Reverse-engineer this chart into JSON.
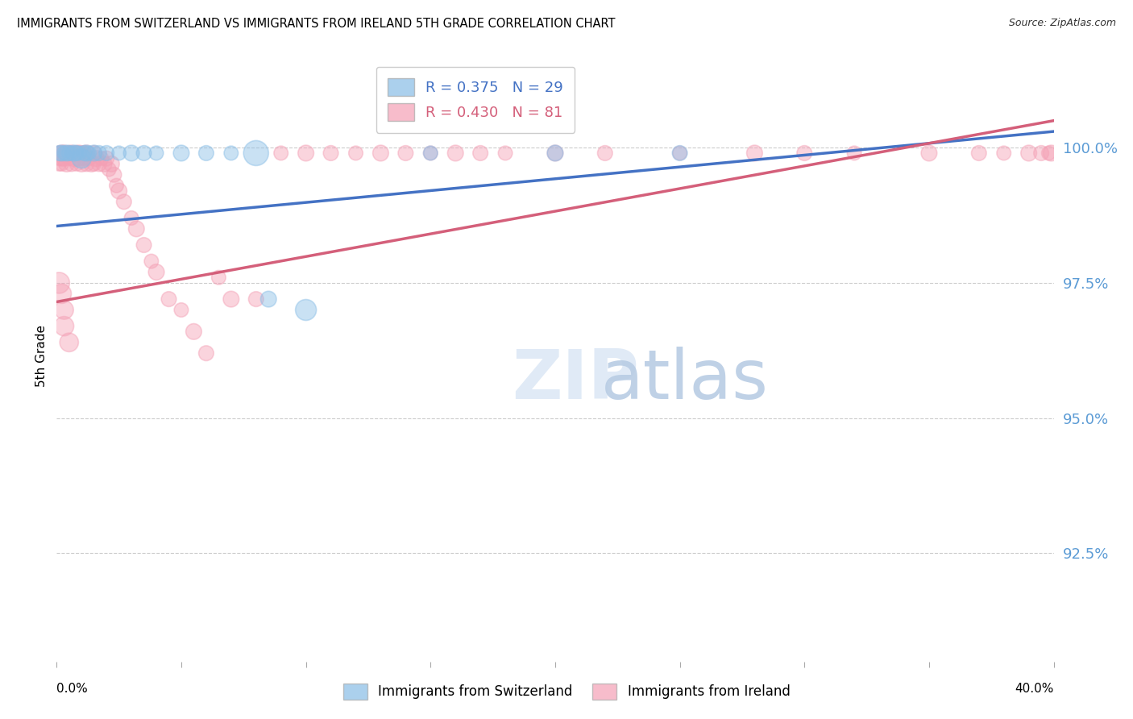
{
  "title": "IMMIGRANTS FROM SWITZERLAND VS IMMIGRANTS FROM IRELAND 5TH GRADE CORRELATION CHART",
  "source": "Source: ZipAtlas.com",
  "ylabel": "5th Grade",
  "y_tick_labels": [
    "100.0%",
    "97.5%",
    "95.0%",
    "92.5%"
  ],
  "y_tick_values": [
    1.0,
    0.975,
    0.95,
    0.925
  ],
  "x_range": [
    0.0,
    0.4
  ],
  "y_range": [
    0.905,
    1.018
  ],
  "legend1_label": "Immigrants from Switzerland",
  "legend2_label": "Immigrants from Ireland",
  "R_switzerland": 0.375,
  "N_switzerland": 29,
  "R_ireland": 0.43,
  "N_ireland": 81,
  "color_switzerland": "#88bde6",
  "color_ireland": "#f4a0b5",
  "line_color_switzerland": "#4472c4",
  "line_color_ireland": "#d45f7a",
  "sw_line_x0": 0.0,
  "sw_line_y0": 0.9855,
  "sw_line_x1": 0.4,
  "sw_line_y1": 1.003,
  "ir_line_x0": 0.0,
  "ir_line_y0": 0.9715,
  "ir_line_x1": 0.4,
  "ir_line_y1": 1.005,
  "sw_x": [
    0.001,
    0.002,
    0.003,
    0.004,
    0.005,
    0.006,
    0.007,
    0.008,
    0.009,
    0.01,
    0.011,
    0.012,
    0.013,
    0.015,
    0.017,
    0.02,
    0.025,
    0.03,
    0.035,
    0.04,
    0.05,
    0.06,
    0.07,
    0.08,
    0.085,
    0.1,
    0.15,
    0.2,
    0.25
  ],
  "sw_y": [
    0.999,
    0.999,
    0.999,
    0.999,
    0.999,
    0.999,
    0.999,
    0.999,
    0.999,
    0.998,
    0.999,
    0.999,
    0.999,
    0.999,
    0.999,
    0.999,
    0.999,
    0.999,
    0.999,
    0.999,
    0.999,
    0.999,
    0.999,
    0.999,
    0.972,
    0.97,
    0.999,
    0.999,
    0.999
  ],
  "sw_s": [
    180,
    200,
    160,
    200,
    180,
    160,
    200,
    180,
    160,
    300,
    180,
    200,
    160,
    200,
    180,
    180,
    160,
    200,
    180,
    160,
    200,
    180,
    160,
    500,
    200,
    350,
    160,
    200,
    180
  ],
  "ir_x": [
    0.001,
    0.001,
    0.001,
    0.002,
    0.002,
    0.002,
    0.003,
    0.003,
    0.004,
    0.004,
    0.005,
    0.005,
    0.006,
    0.006,
    0.007,
    0.007,
    0.008,
    0.008,
    0.009,
    0.009,
    0.01,
    0.01,
    0.011,
    0.011,
    0.012,
    0.012,
    0.013,
    0.014,
    0.015,
    0.015,
    0.016,
    0.017,
    0.018,
    0.019,
    0.02,
    0.021,
    0.022,
    0.023,
    0.024,
    0.025,
    0.027,
    0.03,
    0.032,
    0.035,
    0.038,
    0.04,
    0.045,
    0.05,
    0.055,
    0.06,
    0.065,
    0.07,
    0.08,
    0.09,
    0.1,
    0.11,
    0.12,
    0.13,
    0.14,
    0.15,
    0.16,
    0.17,
    0.18,
    0.2,
    0.22,
    0.25,
    0.28,
    0.3,
    0.32,
    0.35,
    0.37,
    0.38,
    0.39,
    0.395,
    0.398,
    0.399,
    0.001,
    0.002,
    0.003,
    0.003,
    0.005
  ],
  "ir_y": [
    0.999,
    0.998,
    0.997,
    0.999,
    0.998,
    0.997,
    0.999,
    0.998,
    0.999,
    0.997,
    0.999,
    0.998,
    0.999,
    0.997,
    0.999,
    0.998,
    0.999,
    0.997,
    0.999,
    0.998,
    0.999,
    0.997,
    0.999,
    0.998,
    0.999,
    0.997,
    0.998,
    0.997,
    0.999,
    0.997,
    0.998,
    0.997,
    0.998,
    0.997,
    0.998,
    0.996,
    0.997,
    0.995,
    0.993,
    0.992,
    0.99,
    0.987,
    0.985,
    0.982,
    0.979,
    0.977,
    0.972,
    0.97,
    0.966,
    0.962,
    0.976,
    0.972,
    0.972,
    0.999,
    0.999,
    0.999,
    0.999,
    0.999,
    0.999,
    0.999,
    0.999,
    0.999,
    0.999,
    0.999,
    0.999,
    0.999,
    0.999,
    0.999,
    0.999,
    0.999,
    0.999,
    0.999,
    0.999,
    0.999,
    0.999,
    0.999,
    0.975,
    0.973,
    0.97,
    0.967,
    0.964
  ],
  "ir_s": [
    160,
    160,
    160,
    200,
    180,
    160,
    200,
    180,
    160,
    200,
    180,
    160,
    200,
    180,
    160,
    200,
    180,
    160,
    200,
    180,
    160,
    200,
    180,
    160,
    200,
    180,
    160,
    200,
    180,
    160,
    200,
    180,
    160,
    200,
    180,
    160,
    200,
    180,
    160,
    200,
    180,
    160,
    200,
    180,
    160,
    200,
    180,
    160,
    200,
    180,
    160,
    200,
    180,
    160,
    200,
    180,
    160,
    200,
    180,
    160,
    200,
    180,
    160,
    200,
    180,
    160,
    200,
    180,
    160,
    200,
    180,
    160,
    200,
    180,
    160,
    200,
    350,
    300,
    280,
    300,
    280
  ]
}
